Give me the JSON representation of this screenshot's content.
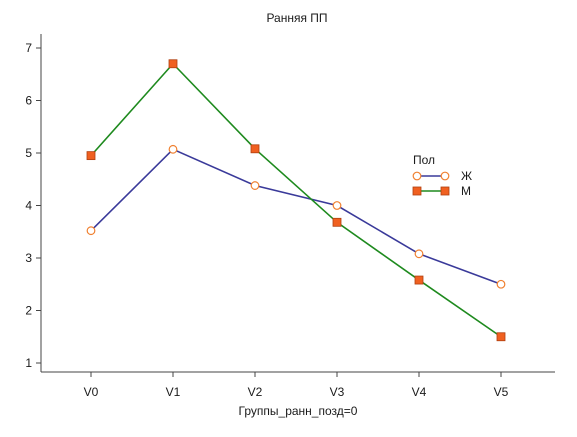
{
  "chart_data": {
    "type": "line",
    "title": "Ранняя ПП",
    "xlabel": "Группы_ранн_позд=0",
    "ylabel": "",
    "categories": [
      "V0",
      "V1",
      "V2",
      "V3",
      "V4",
      "V5"
    ],
    "ylim": [
      0.8,
      7.3
    ],
    "yticks": [
      1,
      2,
      3,
      4,
      5,
      6,
      7
    ],
    "grid": false,
    "legend": {
      "title": "Пол",
      "placement": "right"
    },
    "series": [
      {
        "name": "Ж",
        "values": [
          3.52,
          5.07,
          4.38,
          4.0,
          3.08,
          2.5
        ],
        "line_color": "#3a3a9a",
        "marker": "circle",
        "marker_fill": "#ffffff",
        "marker_stroke": "#f08030"
      },
      {
        "name": "М",
        "values": [
          4.95,
          6.7,
          5.08,
          3.68,
          2.58,
          1.5
        ],
        "line_color": "#1e8a1e",
        "marker": "square",
        "marker_fill": "#f06020",
        "marker_stroke": "#b04010"
      }
    ]
  }
}
